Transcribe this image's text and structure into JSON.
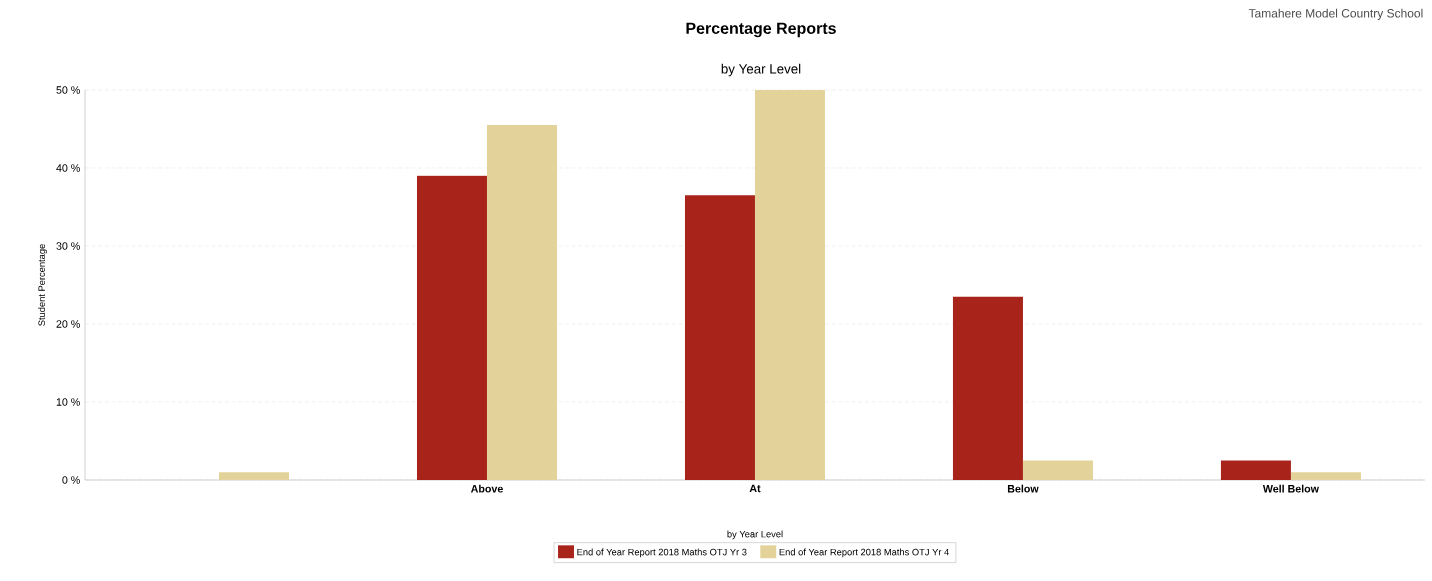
{
  "chart_data": {
    "type": "bar",
    "title": "Percentage Reports",
    "subtitle": "by Year Level",
    "ylabel": "Student Percentage",
    "legend_title": "by Year Level",
    "annotations": [
      "Tamahere Model Country School"
    ],
    "categories": [
      null,
      "Above",
      "At",
      "Below",
      "Well Below"
    ],
    "series": [
      {
        "name": "End of Year Report 2018 Maths OTJ Yr 3",
        "color": "#a8231a",
        "values": [
          0,
          39,
          36.5,
          23.5,
          2.5
        ]
      },
      {
        "name": "End of Year Report 2018 Maths OTJ Yr 4",
        "color": "#e3d39a",
        "values": [
          1,
          45.5,
          50,
          2.5,
          1
        ]
      }
    ],
    "ylim": [
      0,
      50
    ],
    "yticks": [
      {
        "value": 0,
        "label": "0 %"
      },
      {
        "value": 10,
        "label": "10 %"
      },
      {
        "value": 20,
        "label": "20 %"
      },
      {
        "value": 30,
        "label": "30 %"
      },
      {
        "value": 40,
        "label": "40 %"
      },
      {
        "value": 50,
        "label": "50 %"
      }
    ],
    "grid": "y",
    "legend": "bottom"
  }
}
